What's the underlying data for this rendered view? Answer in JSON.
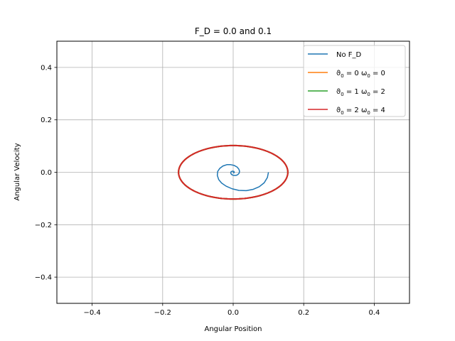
{
  "chart_data": {
    "type": "line",
    "title": "F_D = 0.0 and 0.1",
    "xlabel": "Angular Position",
    "ylabel": "Angular Velocity",
    "xlim": [
      -0.5,
      0.5
    ],
    "ylim": [
      -0.5,
      0.5
    ],
    "xticks": [
      -0.4,
      -0.2,
      0.0,
      0.2,
      0.4
    ],
    "yticks": [
      -0.4,
      -0.2,
      0.0,
      0.2,
      0.4
    ],
    "xtick_labels": [
      "−0.4",
      "−0.2",
      "0.0",
      "0.2",
      "0.4"
    ],
    "ytick_labels": [
      "−0.4",
      "−0.2",
      "0.0",
      "0.2",
      "0.4"
    ],
    "grid": true,
    "legend_position": "top-right",
    "series": [
      {
        "name": "No F_D",
        "color": "#1f77b4",
        "kind": "damped-spiral",
        "points": [
          [
            0.1,
            0.0
          ],
          [
            0.097,
            -0.02
          ],
          [
            0.088,
            -0.04
          ],
          [
            0.074,
            -0.055
          ],
          [
            0.057,
            -0.065
          ],
          [
            0.037,
            -0.07
          ],
          [
            0.016,
            -0.069
          ],
          [
            -0.003,
            -0.063
          ],
          [
            -0.02,
            -0.053
          ],
          [
            -0.033,
            -0.041
          ],
          [
            -0.041,
            -0.028
          ],
          [
            -0.045,
            -0.012
          ],
          [
            -0.044,
            0.003
          ],
          [
            -0.038,
            0.015
          ],
          [
            -0.029,
            0.024
          ],
          [
            -0.018,
            0.029
          ],
          [
            -0.007,
            0.029
          ],
          [
            0.003,
            0.026
          ],
          [
            0.011,
            0.02
          ],
          [
            0.016,
            0.012
          ],
          [
            0.018,
            0.004
          ],
          [
            0.017,
            -0.003
          ],
          [
            0.013,
            -0.009
          ],
          [
            0.008,
            -0.012
          ],
          [
            0.002,
            -0.012
          ],
          [
            -0.003,
            -0.01
          ],
          [
            -0.006,
            -0.006
          ],
          [
            -0.007,
            -0.002
          ],
          [
            -0.006,
            0.002
          ],
          [
            -0.003,
            0.004
          ],
          [
            0.0,
            0.004
          ],
          [
            0.002,
            0.003
          ],
          [
            0.003,
            0.001
          ],
          [
            0.003,
            -0.001
          ],
          [
            0.001,
            -0.002
          ],
          [
            0.0,
            0.0
          ]
        ]
      },
      {
        "name_parts": [
          "ϑ",
          "0",
          " = 0  ω",
          "0",
          " = 0"
        ],
        "color": "#ff7f0e",
        "kind": "ellipse",
        "center": [
          0.0,
          0.0
        ],
        "radii": [
          0.155,
          0.102
        ]
      },
      {
        "name_parts": [
          "ϑ",
          "0",
          " = 1  ω",
          "0",
          " = 2"
        ],
        "color": "#2ca02c",
        "kind": "ellipse",
        "center": [
          0.0,
          0.0
        ],
        "radii": [
          0.155,
          0.102
        ]
      },
      {
        "name_parts": [
          "ϑ",
          "0",
          " = 2  ω",
          "0",
          " = 4"
        ],
        "color": "#d62728",
        "kind": "ellipse",
        "center": [
          0.0,
          0.0
        ],
        "radii": [
          0.155,
          0.102
        ]
      }
    ]
  }
}
